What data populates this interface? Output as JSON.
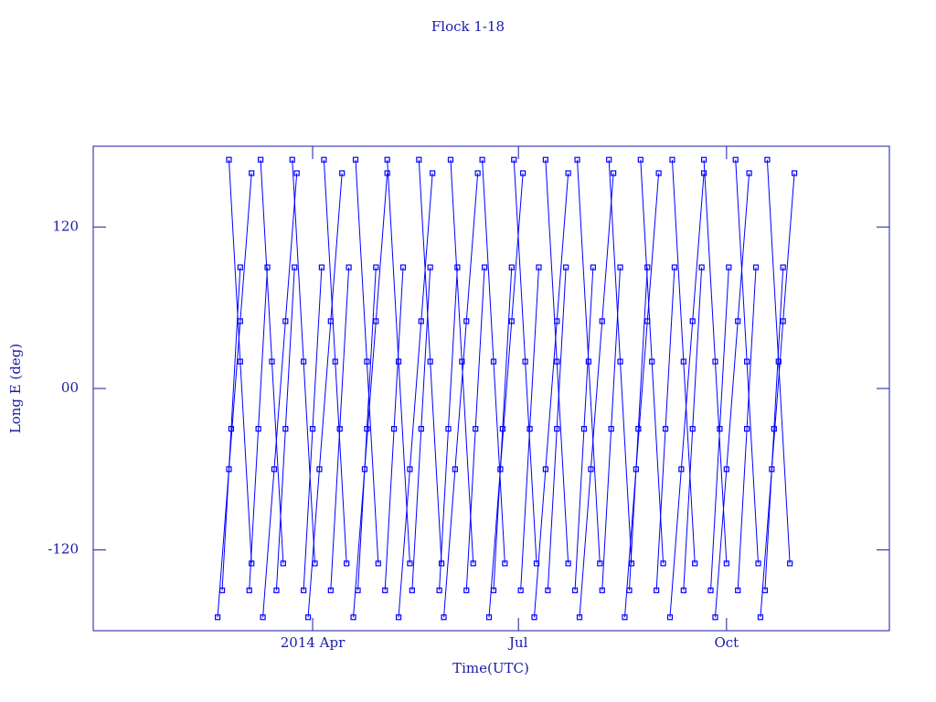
{
  "chart_data": {
    "type": "line",
    "title": "Flock 1-18",
    "xlabel": "Time(UTC)",
    "ylabel": "Long E (deg)",
    "xlim": [
      -7,
      345
    ],
    "xticks": [
      {
        "value": 90,
        "label": "2014 Apr"
      },
      {
        "value": 181,
        "label": "Jul"
      },
      {
        "value": 273,
        "label": "Oct"
      }
    ],
    "ylim": [
      -180,
      180
    ],
    "yticks": [
      -120,
      {
        "value": 0,
        "label": "00"
      },
      120
    ],
    "series": [
      {
        "color": "#0000ff",
        "x": [
          50,
          54,
          58,
          61,
          62,
          66,
          70,
          73,
          74,
          78,
          82,
          85,
          86,
          90,
          94,
          97,
          98,
          102,
          106,
          109,
          110,
          114,
          118,
          121,
          122,
          126,
          130,
          133,
          134,
          138,
          142,
          145,
          146,
          150,
          154,
          157,
          158,
          162,
          166,
          169,
          170,
          174,
          178,
          181,
          182,
          186,
          190,
          193,
          194,
          198,
          202,
          205,
          206,
          210,
          214,
          217,
          218,
          222,
          226,
          229,
          230,
          234,
          238,
          241,
          242,
          246,
          250,
          253,
          254,
          258,
          262,
          265,
          266,
          270,
          274,
          277,
          278,
          282,
          286,
          289,
          290,
          294,
          298,
          301
        ],
        "values": [
          -150,
          -30,
          90,
          null,
          -150,
          -30,
          90,
          null,
          -150,
          -30,
          90,
          null,
          -150,
          -30,
          90,
          null,
          -150,
          -30,
          90,
          null,
          -150,
          -30,
          90,
          null,
          -150,
          -30,
          90,
          null,
          -150,
          -30,
          90,
          null,
          -150,
          -30,
          90,
          null,
          -150,
          -30,
          90,
          null,
          -150,
          -30,
          90,
          null,
          -150,
          -30,
          90,
          null,
          -150,
          -30,
          90,
          null,
          -150,
          -30,
          90,
          null,
          -150,
          -30,
          90,
          null,
          -150,
          -30,
          90,
          null,
          -150,
          -30,
          90,
          null,
          -150,
          -30,
          90,
          null,
          -150,
          -30,
          90,
          null,
          -150,
          -30,
          90,
          null,
          -150,
          -30,
          90,
          null
        ]
      },
      {
        "color": "#0000ff",
        "x": [
          53,
          58,
          63,
          66,
          67,
          72,
          77,
          80,
          81,
          86,
          91,
          94,
          95,
          100,
          105,
          108,
          109,
          114,
          119,
          122,
          123,
          128,
          133,
          136,
          137,
          142,
          147,
          150,
          151,
          156,
          161,
          164,
          165,
          170,
          175,
          178,
          179,
          184,
          189,
          192,
          193,
          198,
          203,
          206,
          207,
          212,
          217,
          220,
          221,
          226,
          231,
          234,
          235,
          240,
          245,
          248,
          249,
          254,
          259,
          262,
          263,
          268,
          273,
          276,
          277,
          282,
          287,
          290,
          291,
          296,
          301,
          303
        ],
        "values": [
          170,
          20,
          -130,
          null,
          170,
          20,
          -130,
          null,
          170,
          20,
          -130,
          null,
          170,
          20,
          -130,
          null,
          170,
          20,
          -130,
          null,
          170,
          20,
          -130,
          null,
          170,
          20,
          -130,
          null,
          170,
          20,
          -130,
          null,
          170,
          20,
          -130,
          null,
          170,
          20,
          -130,
          null,
          170,
          20,
          -130,
          null,
          170,
          20,
          -130,
          null,
          170,
          20,
          -130,
          null,
          170,
          20,
          -130,
          null,
          170,
          20,
          -130,
          null,
          170,
          20,
          -130,
          null,
          170,
          20,
          -130,
          null,
          170,
          20,
          -130,
          null
        ]
      },
      {
        "color": "#0000ff",
        "x": [
          48,
          53,
          58,
          63,
          66,
          68,
          73,
          78,
          83,
          86,
          88,
          93,
          98,
          103,
          106,
          108,
          113,
          118,
          123,
          126,
          128,
          133,
          138,
          143,
          146,
          148,
          153,
          158,
          163,
          166,
          168,
          173,
          178,
          183,
          186,
          188,
          193,
          198,
          203,
          206,
          208,
          213,
          218,
          223,
          226,
          228,
          233,
          238,
          243,
          246,
          248,
          253,
          258,
          263,
          266,
          268,
          273,
          278,
          283,
          286,
          288,
          293,
          298,
          303,
          306
        ],
        "values": [
          -170,
          -60,
          50,
          160,
          null,
          -170,
          -60,
          50,
          160,
          null,
          -170,
          -60,
          50,
          160,
          null,
          -170,
          -60,
          50,
          160,
          null,
          -170,
          -60,
          50,
          160,
          null,
          -170,
          -60,
          50,
          160,
          null,
          -170,
          -60,
          50,
          160,
          null,
          -170,
          -60,
          50,
          160,
          null,
          -170,
          -60,
          50,
          160,
          null,
          -170,
          -60,
          50,
          160,
          null,
          -170,
          -60,
          50,
          160,
          null,
          -170,
          -60,
          50,
          160,
          null,
          -170,
          -60,
          50,
          160,
          null
        ]
      }
    ]
  }
}
